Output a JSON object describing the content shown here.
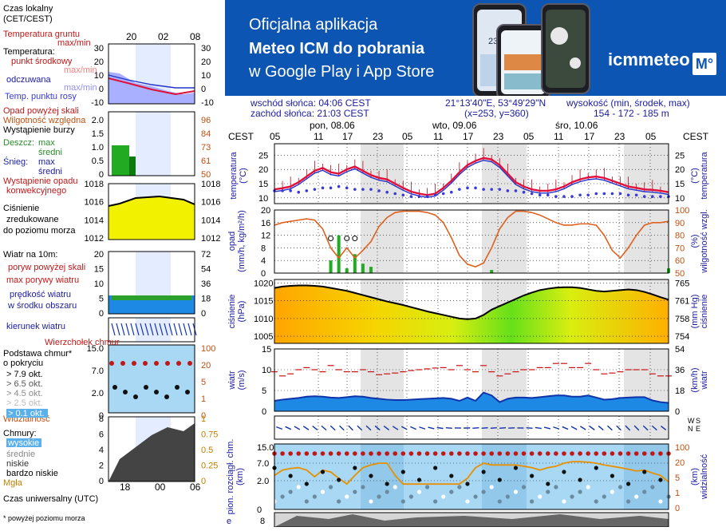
{
  "banner": {
    "line1": "Oficjalna aplikacja",
    "line2": "Meteo ICM do pobrania",
    "line3": "w Google Play i App Store",
    "brand": "icmmeteo",
    "brand_box": "M°",
    "phone_text": "23°"
  },
  "info": {
    "sunrise": "wschód słońca: 04:06 CEST",
    "sunset": "zachód słońca: 21:03 CEST",
    "coords": "21°13'40\"E, 53°49'29\"N",
    "grid": "(x=253,  y=360)",
    "height_label": "wysokość (min, środek, max)",
    "height_values": "154 - 172 - 185 m"
  },
  "legend": {
    "local_time": "Czas lokalny",
    "local_time_zone": "(CET/CEST)",
    "hours_top": [
      "20",
      "02",
      "08"
    ],
    "ground_temp": "Temperatura gruntu",
    "max_min": "max/min",
    "temperature": "Temperatura:",
    "mid_point": "punkt środkowy",
    "max_min2": "max/min",
    "felt": "odczuwana",
    "max_min3": "max/min",
    "dew_point": "Temp. punktu rosy",
    "temp_left_ticks": [
      "30",
      "20",
      "10",
      "0",
      "-10"
    ],
    "temp_right_ticks": [
      "30",
      "20",
      "10",
      "0",
      "-10"
    ],
    "precip_above": "Opad powyżej skali",
    "humidity": "Wilgotność względna",
    "storm": "Wystąpienie burzy",
    "rain": "Deszcz:",
    "snow": "Śnieg:",
    "max": "max",
    "mean": "średni",
    "precip_occurrence": "Wystąpienie opadu",
    "convective": "konwekcyjnego",
    "precip_left_ticks": [
      "2.0",
      "1.5",
      "1.0",
      "0.5",
      "0"
    ],
    "precip_right_ticks": [
      "96",
      "84",
      "73",
      "61",
      "50"
    ],
    "pressure": "Ciśnienie",
    "reduced": "zredukowane",
    "sea_level": "do poziomu morza",
    "pres_left_ticks": [
      "1018",
      "1016",
      "1014",
      "1012"
    ],
    "pres_right_ticks": [
      "1018",
      "1016",
      "1014",
      "1012"
    ],
    "wind_10m": "Wiatr na 10m:",
    "gust_above": "poryw powyżej skali",
    "max_gust": "max porywy wiatru",
    "mean_wind": "prędkość wiatru",
    "area_mean": "w środku obszaru",
    "wind_left_ticks": [
      "20",
      "15",
      "10",
      "5",
      "0"
    ],
    "wind_right_ticks": [
      "72",
      "54",
      "36",
      "18",
      "0"
    ],
    "wind_dir": "kierunek wiatru",
    "cloud_top": "Wierzchołek chmur",
    "cloud_base": "Podstawa chmur*",
    "by_cover": "o pokryciu",
    "okt_79": "> 7.9 okt.",
    "okt_65": "> 6.5 okt.",
    "okt_45": "> 4.5 okt.",
    "okt_25": "> 2.5 okt.",
    "okt_01": "> 0.1 okt.",
    "visibility": "Widzialność",
    "cloud_left_ticks": [
      "15.0",
      "7.0",
      "2.0",
      "0"
    ],
    "cloud_right_ticks": [
      "100",
      "20",
      "5",
      "1",
      "0"
    ],
    "clouds": "Chmury:",
    "high": "wysokie",
    "middle": "średnie",
    "low": "niskie",
    "very_low": "bardzo niskie",
    "fog": "Mgła",
    "cc_left_ticks": [
      "8",
      "6",
      "4",
      "2",
      "0"
    ],
    "cc_right_ticks": [
      "1",
      "0.75",
      "0.5",
      "0.25",
      "0"
    ],
    "utc_hours": [
      "18",
      "00",
      "06"
    ],
    "utc": "Czas uniwersalny (UTC)",
    "footnote": "* powyżej poziomu morza"
  },
  "main": {
    "cest": "CEST",
    "days": [
      "pon, 08.06",
      "wto, 09.06",
      "śro, 10.06"
    ],
    "hours": [
      "05",
      "11",
      "17",
      "23",
      "05",
      "11",
      "17",
      "23",
      "05",
      "11",
      "17",
      "23",
      "05"
    ],
    "temp_label_left": [
      "temperatura",
      "(°C)"
    ],
    "temp_label_right": [
      "(°C)",
      "temperatura"
    ],
    "temp_ticks": [
      "25",
      "20",
      "15",
      "10"
    ],
    "precip_label_left": [
      "opad",
      "(mm/h, kg/m²/h)"
    ],
    "precip_label_right": [
      "(%)",
      "wilgotność wzgl."
    ],
    "precip_ticks": [
      "20",
      "16",
      "12",
      "8",
      "4",
      "0"
    ],
    "hum_ticks": [
      "100",
      "90",
      "80",
      "70",
      "60",
      "50"
    ],
    "pres_label_left": [
      "ciśnienie",
      "(hPa)"
    ],
    "pres_label_right": [
      "(mm Hg)",
      "ciśnienie"
    ],
    "pres_ticks": [
      "1020",
      "1015",
      "1010",
      "1005"
    ],
    "pres_mm_ticks": [
      "765",
      "761",
      "758",
      "754"
    ],
    "wind_label_left": [
      "wiatr",
      "(m/s)"
    ],
    "wind_label_right": [
      "(km/h)",
      "wiatr"
    ],
    "wind_ticks": [
      "15",
      "10",
      "5",
      "0"
    ],
    "wind_kmh_ticks": [
      "54",
      "36",
      "18",
      "0"
    ],
    "dir_labels": [
      "W",
      "S",
      "N",
      "E"
    ],
    "cloud_label_left": [
      "pion. rozciągł. chm.",
      "(km)"
    ],
    "cloud_label_right": [
      "(km)",
      "widzialność"
    ],
    "cloud_ticks": [
      "15.0",
      "7.0",
      "2.0",
      "0"
    ],
    "vis_ticks": [
      "100",
      "20",
      "5",
      "1",
      "0"
    ],
    "cc_tick": "8",
    "cc_label": "e"
  },
  "colors": {
    "banner": "#0d55b2",
    "temp_line": "#e0103a",
    "dew": "#3a3ad8",
    "humidity": "#e0601e",
    "rain": "#22aa22",
    "wind": "#1133aa",
    "gust": "#cc1111",
    "label_blue": "#1b1b9e"
  },
  "chart_data": [
    {
      "type": "line",
      "title": "temperatura",
      "ylabel": "(°C)",
      "ylim": [
        8,
        29
      ],
      "x_step_hours": 3,
      "series": [
        {
          "values": [
            13,
            13.4,
            14,
            15.5,
            17.5,
            19.5,
            20.5,
            19,
            18.5,
            20,
            21,
            19.5,
            18,
            17,
            16.5,
            15,
            13.5,
            12.2,
            11.5,
            11,
            11.5,
            13.5,
            16,
            19,
            21.5,
            23,
            24,
            23.5,
            21.5,
            18.5,
            15.5,
            14,
            13,
            12.5,
            12.5,
            13,
            14,
            15.5,
            16.5,
            17.2,
            17.5,
            17,
            16,
            15,
            14,
            13.5,
            13,
            12.8,
            12.5,
            12
          ]
        },
        {
          "values": [
            12.5,
            12.5,
            12.5,
            12,
            12.5,
            13,
            13.5,
            13.5,
            14,
            13.5,
            13,
            13,
            13,
            12.5,
            12,
            11.5,
            11,
            10.5,
            10.5,
            10.5,
            11,
            11.5,
            12,
            13,
            13.5,
            13.5,
            13,
            13,
            13,
            12.5,
            12.5,
            12,
            11.5,
            11,
            11,
            10.5,
            10.5,
            10.5,
            11,
            11,
            11.5,
            11.5,
            11.5,
            11.5,
            11,
            11,
            10.5,
            10.5,
            10.5,
            10.5
          ]
        }
      ]
    },
    {
      "type": "bar",
      "title": "opad",
      "ylabel": "(mm/h, kg/m²/h)",
      "ylim": [
        0,
        20
      ],
      "x_step_hours": 3,
      "series": [
        {
          "values": [
            0,
            0,
            0,
            0,
            0,
            0,
            0,
            4,
            12,
            1.5,
            6,
            3,
            2,
            0,
            0,
            0,
            0,
            0,
            0,
            0,
            0,
            0,
            0,
            0,
            0,
            0,
            0,
            1,
            0,
            0,
            0,
            0,
            0,
            0,
            0,
            0,
            0,
            0,
            0,
            0,
            0,
            0,
            0,
            0,
            0,
            0,
            0,
            0,
            0,
            1.5
          ]
        },
        {
          "values": [
            88,
            90,
            91,
            92,
            93,
            92,
            85,
            70,
            62,
            70,
            62,
            68,
            75,
            87,
            94,
            98,
            99,
            99,
            99,
            98,
            96,
            90,
            78,
            64,
            57,
            55,
            58,
            70,
            85,
            94,
            99,
            99,
            98,
            96,
            93,
            90,
            88,
            88,
            89,
            89,
            88,
            80,
            68,
            62,
            70,
            80,
            88,
            90,
            90,
            91
          ]
        }
      ]
    },
    {
      "type": "area",
      "title": "ciśnienie",
      "ylabel": "(hPa)",
      "ylim": [
        1003,
        1021
      ],
      "x_step_hours": 3,
      "series": [
        {
          "values": [
            1018.6,
            1019,
            1019.2,
            1019.3,
            1019.3,
            1019.2,
            1019,
            1018.6,
            1018.2,
            1017.8,
            1017.2,
            1016.6,
            1016,
            1015.4,
            1014.8,
            1014.3,
            1013.8,
            1013.2,
            1012.6,
            1012,
            1011.5,
            1011,
            1010.5,
            1010,
            1009.8,
            1010,
            1011,
            1012.5,
            1013.5,
            1014.5,
            1015.5,
            1016.5,
            1017.3,
            1018,
            1018.4,
            1018.7,
            1018.8,
            1018.8,
            1018.6,
            1018.2,
            1017.8,
            1017.6,
            1017.8,
            1018,
            1018.2,
            1018,
            1017.5,
            1016.8,
            1016,
            1015.3
          ]
        }
      ]
    },
    {
      "type": "area",
      "title": "wiatr",
      "ylabel": "(m/s)",
      "ylim": [
        0,
        15
      ],
      "x_step_hours": 3,
      "series": [
        {
          "values": [
            2.5,
            2.8,
            3,
            3.2,
            3.5,
            3.6,
            3.5,
            3.3,
            3.2,
            3.4,
            3.6,
            3.5,
            3.2,
            3,
            2.8,
            2.7,
            2.7,
            2.8,
            2.9,
            3,
            3.1,
            3.2,
            3,
            2.5,
            3.3,
            2.5,
            4.5,
            3.8,
            2.2,
            3,
            3.3,
            3.3,
            3.2,
            3.4,
            3.6,
            3.8,
            3.8,
            3.5,
            3.5,
            3.8,
            3.3,
            2.8,
            2.9,
            3.2,
            3.3,
            3.4,
            3.4,
            2.6,
            2.2,
            2
          ]
        },
        {
          "values": [
            9.5,
            8.5,
            9,
            10,
            10.5,
            10,
            9.5,
            11,
            10,
            9.5,
            9.5,
            10,
            9.5,
            8.8,
            9,
            9.2,
            9.5,
            9.8,
            10,
            10.2,
            10.4,
            10.5,
            10,
            11,
            10,
            9.5,
            11,
            9.5,
            8.5,
            9,
            9.5,
            10,
            10,
            10.5,
            10.5,
            11.5,
            11.5,
            10.5,
            10.5,
            11.5,
            10,
            9,
            9.2,
            9.5,
            10,
            10,
            10,
            9,
            8.5,
            8.5
          ]
        }
      ]
    },
    {
      "type": "line",
      "title": "widzialność",
      "ylabel": "(km)",
      "ylim": [
        0,
        100
      ],
      "x_step_hours": 3,
      "series": [
        {
          "values": [
            10,
            15,
            17,
            18,
            15,
            9,
            15,
            13,
            8,
            5,
            10,
            18,
            22,
            25,
            25,
            10,
            5,
            5,
            5,
            5,
            5,
            5,
            5,
            5,
            8,
            18,
            25,
            22,
            22,
            22,
            22,
            20,
            18,
            15,
            18,
            20,
            25,
            28,
            28,
            27,
            25,
            22,
            20,
            18,
            16,
            14,
            15,
            12,
            10,
            6
          ]
        }
      ]
    }
  ]
}
